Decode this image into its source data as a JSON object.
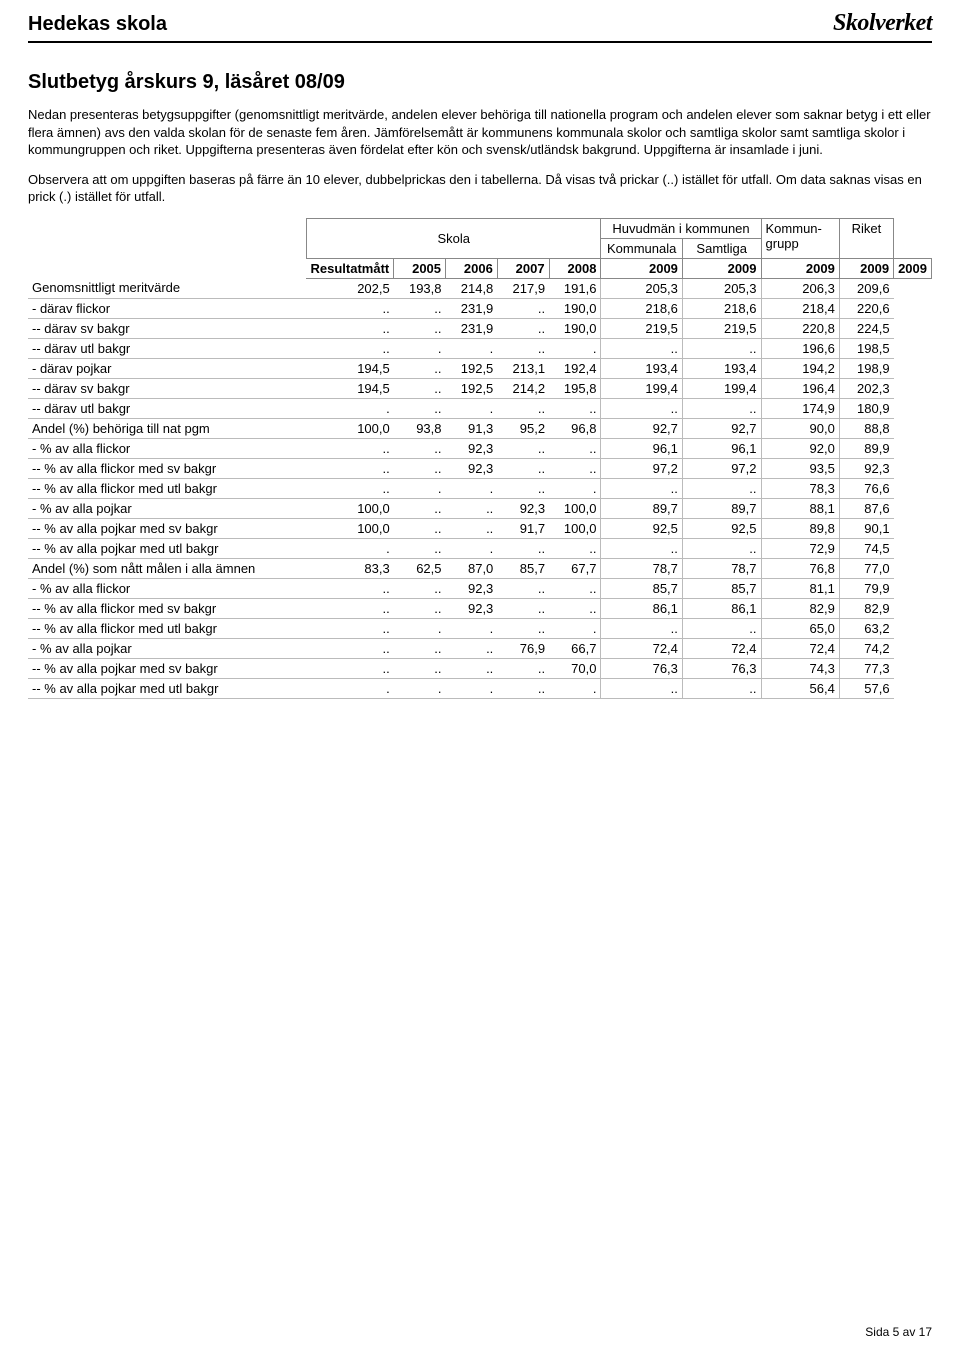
{
  "header": {
    "school_name": "Hedekas skola",
    "logo_text": "Skolverket"
  },
  "title": "Slutbetyg årskurs 9, läsåret 08/09",
  "intro_paragraphs": [
    "Nedan presenteras betygsuppgifter (genomsnittligt meritvärde, andelen elever behöriga till nationella program och andelen elever som saknar betyg i ett eller flera ämnen) avs den valda skolan för de senaste fem åren. Jämförelsemått är kommunens kommunala skolor och samtliga skolor samt samtliga skolor i kommungruppen och riket. Uppgifterna presenteras även fördelat efter kön och svensk/utländsk bakgrund. Uppgifterna är insamlade i juni.",
    "Observera att om uppgiften baseras på färre än 10 elever, dubbelprickas den i tabellerna. Då visas två prickar (..) istället för utfall. Om data saknas visas en prick (.) istället för utfall."
  ],
  "table": {
    "group_headers": {
      "skola": "Skola",
      "huvudman": "Huvudmän i kommunen",
      "kommunala": "Kommunala",
      "samtliga": "Samtliga",
      "kommungrupp_line1": "Kommun-",
      "kommungrupp_line2": "grupp",
      "riket": "Riket"
    },
    "row_label_header": "Resultatmått",
    "years": [
      "2005",
      "2006",
      "2007",
      "2008",
      "2009",
      "2009",
      "2009",
      "2009",
      "2009"
    ],
    "rows": [
      {
        "label": "Genomsnittligt meritvärde",
        "cells": [
          "202,5",
          "193,8",
          "214,8",
          "217,9",
          "191,6",
          "205,3",
          "205,3",
          "206,3",
          "209,6"
        ]
      },
      {
        "label": "- därav flickor",
        "cells": [
          "..",
          "..",
          "231,9",
          "..",
          "190,0",
          "218,6",
          "218,6",
          "218,4",
          "220,6"
        ]
      },
      {
        "label": "-- därav sv bakgr",
        "cells": [
          "..",
          "..",
          "231,9",
          "..",
          "190,0",
          "219,5",
          "219,5",
          "220,8",
          "224,5"
        ]
      },
      {
        "label": "-- därav utl bakgr",
        "cells": [
          "..",
          ".",
          ".",
          "..",
          ".",
          "..",
          "..",
          "196,6",
          "198,5"
        ]
      },
      {
        "label": "- därav pojkar",
        "cells": [
          "194,5",
          "..",
          "192,5",
          "213,1",
          "192,4",
          "193,4",
          "193,4",
          "194,2",
          "198,9"
        ]
      },
      {
        "label": "-- därav sv bakgr",
        "cells": [
          "194,5",
          "..",
          "192,5",
          "214,2",
          "195,8",
          "199,4",
          "199,4",
          "196,4",
          "202,3"
        ]
      },
      {
        "label": "-- därav utl bakgr",
        "cells": [
          ".",
          "..",
          ".",
          "..",
          "..",
          "..",
          "..",
          "174,9",
          "180,9"
        ]
      },
      {
        "label": "Andel (%) behöriga till nat pgm",
        "cells": [
          "100,0",
          "93,8",
          "91,3",
          "95,2",
          "96,8",
          "92,7",
          "92,7",
          "90,0",
          "88,8"
        ]
      },
      {
        "label": "- % av alla flickor",
        "cells": [
          "..",
          "..",
          "92,3",
          "..",
          "..",
          "96,1",
          "96,1",
          "92,0",
          "89,9"
        ]
      },
      {
        "label": "-- % av alla flickor med sv bakgr",
        "cells": [
          "..",
          "..",
          "92,3",
          "..",
          "..",
          "97,2",
          "97,2",
          "93,5",
          "92,3"
        ]
      },
      {
        "label": "-- % av alla flickor med utl bakgr",
        "cells": [
          "..",
          ".",
          ".",
          "..",
          ".",
          "..",
          "..",
          "78,3",
          "76,6"
        ]
      },
      {
        "label": "- % av alla pojkar",
        "cells": [
          "100,0",
          "..",
          "..",
          "92,3",
          "100,0",
          "89,7",
          "89,7",
          "88,1",
          "87,6"
        ]
      },
      {
        "label": "-- % av alla pojkar med sv bakgr",
        "cells": [
          "100,0",
          "..",
          "..",
          "91,7",
          "100,0",
          "92,5",
          "92,5",
          "89,8",
          "90,1"
        ]
      },
      {
        "label": "-- % av alla pojkar med utl bakgr",
        "cells": [
          ".",
          "..",
          ".",
          "..",
          "..",
          "..",
          "..",
          "72,9",
          "74,5"
        ]
      },
      {
        "label": "Andel (%) som nått målen i alla ämnen",
        "cells": [
          "83,3",
          "62,5",
          "87,0",
          "85,7",
          "67,7",
          "78,7",
          "78,7",
          "76,8",
          "77,0"
        ]
      },
      {
        "label": "- % av alla flickor",
        "cells": [
          "..",
          "..",
          "92,3",
          "..",
          "..",
          "85,7",
          "85,7",
          "81,1",
          "79,9"
        ]
      },
      {
        "label": "-- % av alla flickor med sv bakgr",
        "cells": [
          "..",
          "..",
          "92,3",
          "..",
          "..",
          "86,1",
          "86,1",
          "82,9",
          "82,9"
        ]
      },
      {
        "label": "-- % av alla flickor med utl bakgr",
        "cells": [
          "..",
          ".",
          ".",
          "..",
          ".",
          "..",
          "..",
          "65,0",
          "63,2"
        ]
      },
      {
        "label": "- % av alla pojkar",
        "cells": [
          "..",
          "..",
          "..",
          "76,9",
          "66,7",
          "72,4",
          "72,4",
          "72,4",
          "74,2"
        ]
      },
      {
        "label": "-- % av alla pojkar med sv bakgr",
        "cells": [
          "..",
          "..",
          "..",
          "..",
          "70,0",
          "76,3",
          "76,3",
          "74,3",
          "77,3"
        ]
      },
      {
        "label": "-- % av alla pojkar med utl bakgr",
        "cells": [
          ".",
          ".",
          ".",
          "..",
          ".",
          "..",
          "..",
          "56,4",
          "57,6"
        ]
      }
    ],
    "sep_after_cols": [
      4,
      5,
      6,
      7
    ]
  },
  "footer": "Sida 5 av 17"
}
